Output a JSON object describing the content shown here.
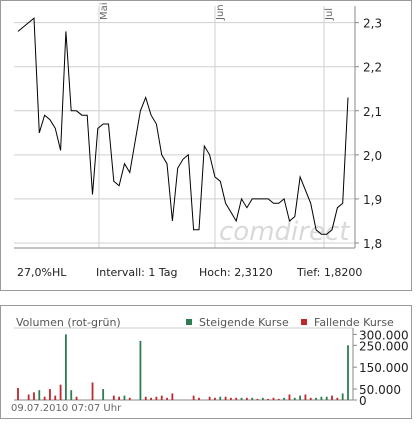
{
  "chart_data": [
    {
      "type": "line",
      "x_tick_labels": [
        "Mai",
        "Jun",
        "Jul"
      ],
      "y_tick_labels": [
        "2,3",
        "2,2",
        "2,1",
        "2,0",
        "1,9",
        "1,8"
      ],
      "ylim": [
        1.79,
        2.33
      ],
      "grid": true,
      "watermark": "comdirect",
      "series": [
        {
          "values": [
            2.28,
            2.29,
            2.3,
            2.31,
            2.05,
            2.09,
            2.08,
            2.06,
            2.01,
            2.28,
            2.1,
            2.1,
            2.09,
            2.09,
            1.91,
            2.06,
            2.07,
            2.07,
            1.94,
            1.93,
            1.98,
            1.96,
            2.03,
            2.1,
            2.13,
            2.09,
            2.07,
            2.0,
            1.98,
            1.85,
            1.97,
            1.99,
            2.0,
            1.83,
            1.83,
            2.02,
            2.0,
            1.95,
            1.94,
            1.89,
            1.87,
            1.85,
            1.9,
            1.88,
            1.9,
            1.9,
            1.9,
            1.9,
            1.89,
            1.89,
            1.9,
            1.85,
            1.86,
            1.95,
            1.92,
            1.89,
            1.83,
            1.82,
            1.82,
            1.83,
            1.88,
            1.89,
            2.13
          ]
        }
      ]
    },
    {
      "type": "bar",
      "title": "Volumen (rot-grün)",
      "y_tick_labels": [
        "300.000",
        "250.000",
        "150.000",
        "50.000",
        "0"
      ],
      "ylim": [
        0,
        320000
      ],
      "legend_position": "top-right",
      "series": [
        {
          "name": "Steigende Kurse",
          "color": "#2e7d4f",
          "values": [
            0,
            0,
            0,
            0,
            45000,
            0,
            0,
            0,
            0,
            300000,
            45000,
            0,
            0,
            0,
            0,
            0,
            50000,
            0,
            0,
            0,
            20000,
            0,
            0,
            270000,
            0,
            0,
            0,
            0,
            0,
            0,
            0,
            0,
            0,
            0,
            0,
            0,
            0,
            0,
            15000,
            0,
            0,
            0,
            10000,
            0,
            10000,
            0,
            10000,
            0,
            0,
            0,
            10000,
            0,
            10000,
            20000,
            0,
            0,
            10000,
            15000,
            15000,
            0,
            0,
            30000,
            250000
          ]
        },
        {
          "name": "Fallende Kurse",
          "color": "#c0262c",
          "values": [
            55000,
            0,
            25000,
            35000,
            0,
            15000,
            50000,
            20000,
            70000,
            0,
            0,
            15000,
            0,
            0,
            80000,
            0,
            0,
            0,
            20000,
            15000,
            0,
            10000,
            0,
            0,
            15000,
            10000,
            15000,
            20000,
            10000,
            30000,
            0,
            0,
            0,
            20000,
            10000,
            0,
            15000,
            10000,
            0,
            15000,
            10000,
            10000,
            0,
            10000,
            0,
            5000,
            0,
            5000,
            10000,
            5000,
            0,
            25000,
            0,
            0,
            25000,
            10000,
            0,
            0,
            0,
            20000,
            10000,
            0,
            0
          ]
        }
      ]
    }
  ],
  "stats": {
    "hl": "27,0%HL",
    "interval": "Intervall: 1 Tag",
    "high": "Hoch: 2,3120",
    "low": "Tief: 1,8200"
  },
  "timestamp": "09.07.2010 07:07 Uhr",
  "colors": {
    "grid": "#cfcfcf",
    "axis": "#888888",
    "price_line": "#000000",
    "watermark": "#d9d9d9"
  }
}
